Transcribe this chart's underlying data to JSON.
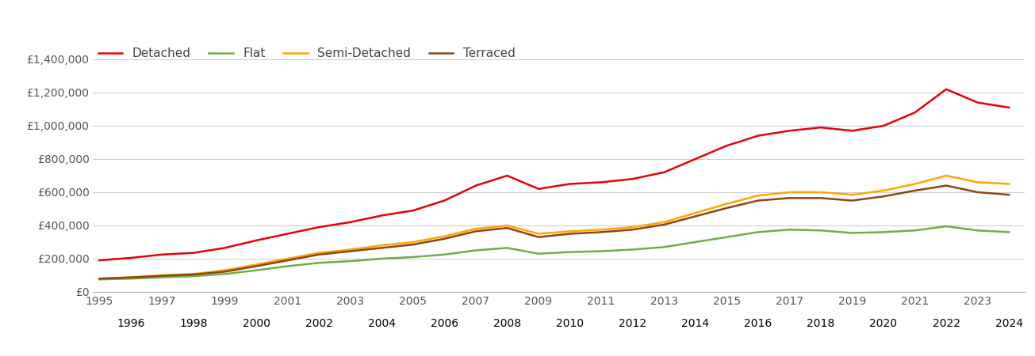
{
  "series": {
    "Detached": {
      "color": "#e8000d",
      "data": {
        "1995": 190000,
        "1996": 205000,
        "1997": 225000,
        "1998": 235000,
        "1999": 265000,
        "2000": 310000,
        "2001": 350000,
        "2002": 390000,
        "2003": 420000,
        "2004": 460000,
        "2005": 490000,
        "2006": 550000,
        "2007": 640000,
        "2008": 700000,
        "2009": 620000,
        "2010": 650000,
        "2011": 660000,
        "2012": 680000,
        "2013": 720000,
        "2014": 800000,
        "2015": 880000,
        "2016": 940000,
        "2017": 970000,
        "2018": 990000,
        "2019": 970000,
        "2020": 1000000,
        "2021": 1080000,
        "2022": 1220000,
        "2023": 1140000,
        "2024": 1110000
      }
    },
    "Flat": {
      "color": "#70ad47",
      "data": {
        "1995": 75000,
        "1996": 80000,
        "1997": 88000,
        "1998": 95000,
        "1999": 108000,
        "2000": 130000,
        "2001": 155000,
        "2002": 175000,
        "2003": 185000,
        "2004": 200000,
        "2005": 210000,
        "2006": 225000,
        "2007": 250000,
        "2008": 265000,
        "2009": 230000,
        "2010": 240000,
        "2011": 245000,
        "2012": 255000,
        "2013": 270000,
        "2014": 300000,
        "2015": 330000,
        "2016": 360000,
        "2017": 375000,
        "2018": 370000,
        "2019": 355000,
        "2020": 360000,
        "2021": 370000,
        "2022": 395000,
        "2023": 370000,
        "2024": 360000
      }
    },
    "Semi-Detached": {
      "color": "#ffa500",
      "data": {
        "1995": 80000,
        "1996": 88000,
        "1997": 100000,
        "1998": 108000,
        "1999": 130000,
        "2000": 165000,
        "2001": 200000,
        "2002": 235000,
        "2003": 255000,
        "2004": 280000,
        "2005": 300000,
        "2006": 335000,
        "2007": 380000,
        "2008": 400000,
        "2009": 350000,
        "2010": 365000,
        "2011": 375000,
        "2012": 390000,
        "2013": 420000,
        "2014": 475000,
        "2015": 530000,
        "2016": 580000,
        "2017": 600000,
        "2018": 600000,
        "2019": 585000,
        "2020": 610000,
        "2021": 650000,
        "2022": 700000,
        "2023": 660000,
        "2024": 650000
      }
    },
    "Terraced": {
      "color": "#8B4513",
      "data": {
        "1995": 80000,
        "1996": 87000,
        "1997": 97000,
        "1998": 105000,
        "1999": 122000,
        "2000": 155000,
        "2001": 190000,
        "2002": 225000,
        "2003": 245000,
        "2004": 265000,
        "2005": 285000,
        "2006": 320000,
        "2007": 365000,
        "2008": 385000,
        "2009": 330000,
        "2010": 350000,
        "2011": 360000,
        "2012": 375000,
        "2013": 405000,
        "2014": 455000,
        "2015": 505000,
        "2016": 550000,
        "2017": 565000,
        "2018": 565000,
        "2019": 550000,
        "2020": 575000,
        "2021": 610000,
        "2022": 640000,
        "2023": 600000,
        "2024": 585000
      }
    }
  },
  "ylim": [
    0,
    1500000
  ],
  "yticks": [
    0,
    200000,
    400000,
    600000,
    800000,
    1000000,
    1200000,
    1400000
  ],
  "ytick_labels": [
    "£0",
    "£200,000",
    "£400,000",
    "£600,000",
    "£800,000",
    "£1,000,000",
    "£1,200,000",
    "£1,400,000"
  ],
  "xlim_start": 1994.8,
  "xlim_end": 2024.5,
  "background_color": "#ffffff",
  "grid_color": "#cccccc",
  "line_width": 1.8,
  "legend_fontsize": 11,
  "tick_fontsize": 10,
  "odd_years": [
    1995,
    1997,
    1999,
    2001,
    2003,
    2005,
    2007,
    2009,
    2011,
    2013,
    2015,
    2017,
    2019,
    2021,
    2023
  ],
  "even_years": [
    1996,
    1998,
    2000,
    2002,
    2004,
    2006,
    2008,
    2010,
    2012,
    2014,
    2016,
    2018,
    2020,
    2022,
    2024
  ]
}
